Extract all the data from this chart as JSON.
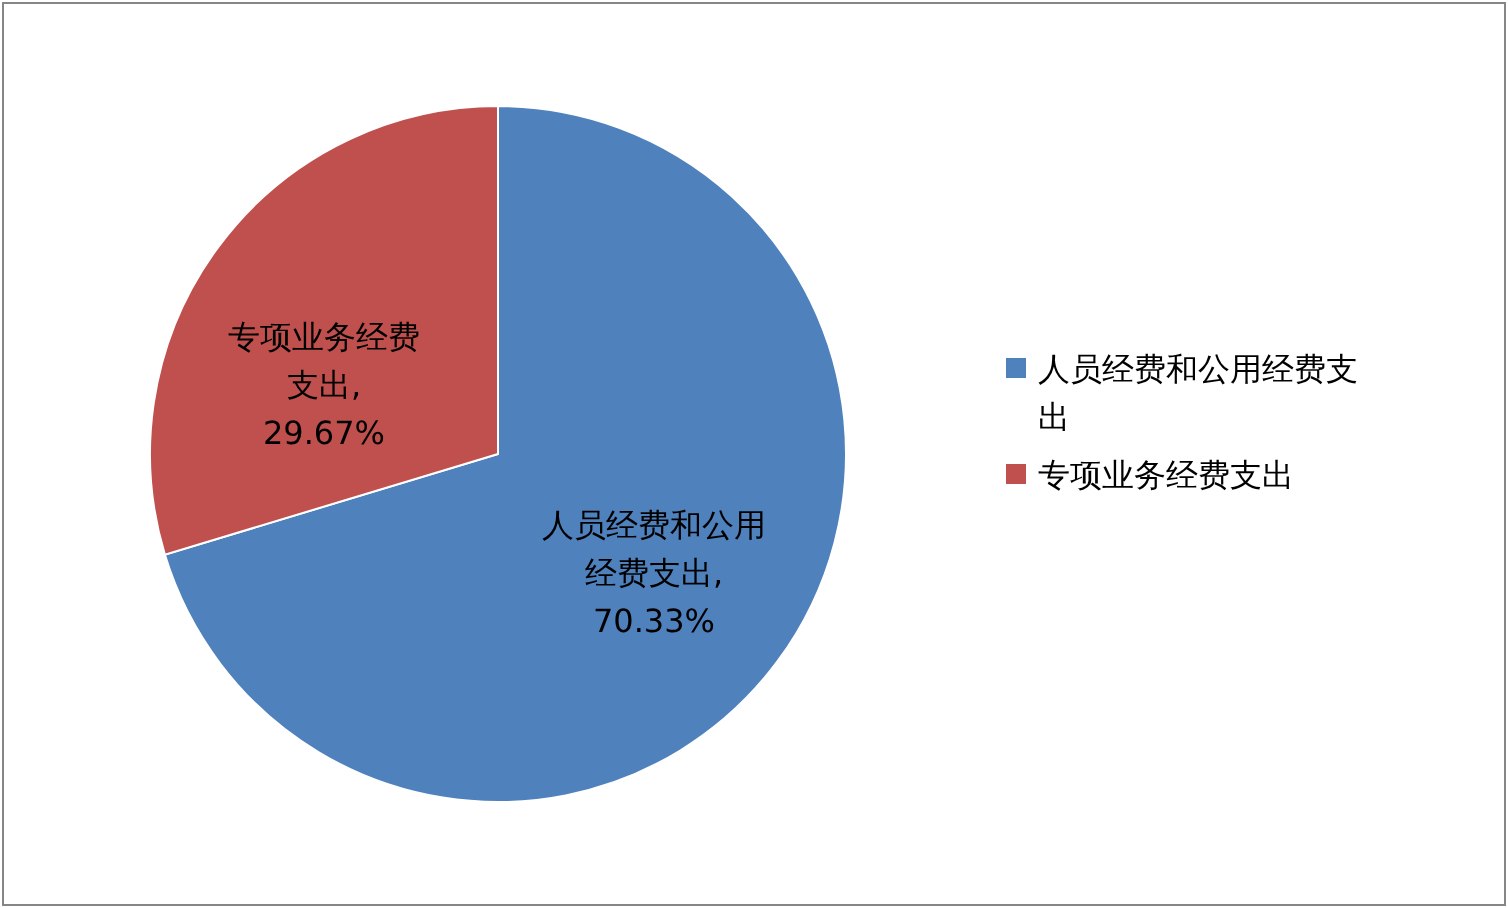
{
  "chart_data": {
    "type": "pie",
    "categories": [
      "人员经费和公用经费支出",
      "专项业务经费支出"
    ],
    "values": [
      70.33,
      29.67
    ],
    "value_labels": [
      "人员经费和公用经费支出, 70.33%",
      "专项业务经费支出, 29.67%"
    ],
    "colors": [
      "#4f81bd",
      "#c0504d"
    ],
    "legend": "right"
  }
}
